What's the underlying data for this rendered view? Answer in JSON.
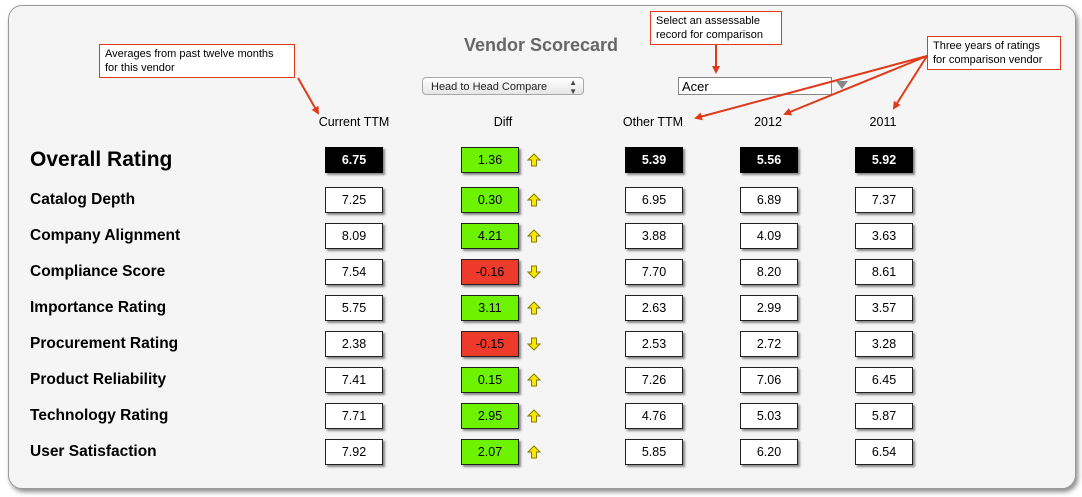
{
  "title": "Vendor Scorecard",
  "compare_select": {
    "value": "Head to Head Compare"
  },
  "vendor_input": {
    "value": "Acer"
  },
  "callouts": {
    "averages": "Averages from past twelve months for this vendor",
    "select_record": "Select an assessable record for comparison",
    "three_years": "Three years of ratings for comparison vendor"
  },
  "columns": [
    "Current TTM",
    "Diff",
    "Other TTM",
    "2012",
    "2011"
  ],
  "colors": {
    "positive": "#6df300",
    "negative": "#ee3a2a",
    "overall": "#000000",
    "callout_border": "#e03a1a"
  },
  "rows": [
    {
      "label": "Overall Rating",
      "current": "6.75",
      "diff": "1.36",
      "trend": "up",
      "other": "5.39",
      "y2012": "5.56",
      "y2011": "5.92"
    },
    {
      "label": "Catalog Depth",
      "current": "7.25",
      "diff": "0.30",
      "trend": "up",
      "other": "6.95",
      "y2012": "6.89",
      "y2011": "7.37"
    },
    {
      "label": "Company Alignment",
      "current": "8.09",
      "diff": "4.21",
      "trend": "up",
      "other": "3.88",
      "y2012": "4.09",
      "y2011": "3.63"
    },
    {
      "label": "Compliance Score",
      "current": "7.54",
      "diff": "-0.16",
      "trend": "down",
      "other": "7.70",
      "y2012": "8.20",
      "y2011": "8.61"
    },
    {
      "label": "Importance Rating",
      "current": "5.75",
      "diff": "3.11",
      "trend": "up",
      "other": "2.63",
      "y2012": "2.99",
      "y2011": "3.57"
    },
    {
      "label": "Procurement Rating",
      "current": "2.38",
      "diff": "-0.15",
      "trend": "down",
      "other": "2.53",
      "y2012": "2.72",
      "y2011": "3.28"
    },
    {
      "label": "Product Reliability",
      "current": "7.41",
      "diff": "0.15",
      "trend": "up",
      "other": "7.26",
      "y2012": "7.06",
      "y2011": "6.45"
    },
    {
      "label": "Technology Rating",
      "current": "7.71",
      "diff": "2.95",
      "trend": "up",
      "other": "4.76",
      "y2012": "5.03",
      "y2011": "5.87"
    },
    {
      "label": "User Satisfaction",
      "current": "7.92",
      "diff": "2.07",
      "trend": "up",
      "other": "5.85",
      "y2012": "6.20",
      "y2011": "6.54"
    }
  ]
}
